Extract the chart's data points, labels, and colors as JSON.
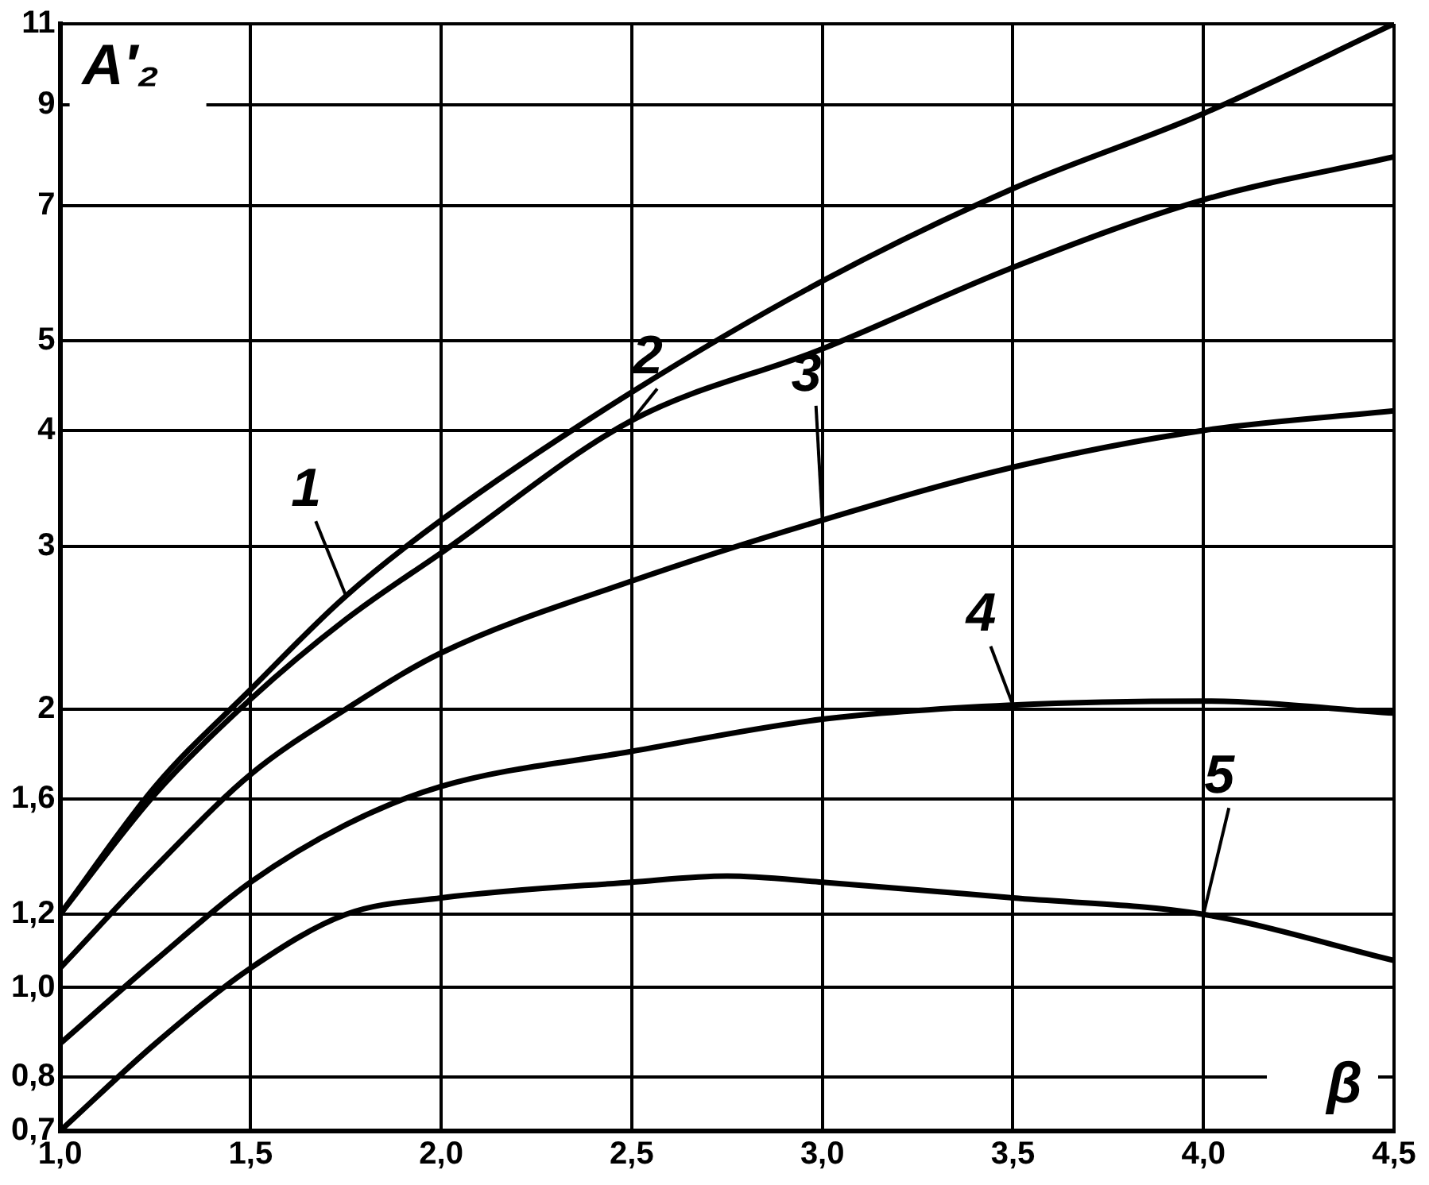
{
  "chart_data": {
    "type": "line",
    "xlabel": "β",
    "ylabel": "A′₂",
    "log": "y",
    "grid": true,
    "legend": false,
    "marker": "none",
    "line_style": "solid",
    "xlim": [
      1.0,
      4.5
    ],
    "xticks": [
      {
        "value": 1.0,
        "label": "1,0"
      },
      {
        "value": 1.5,
        "label": "1,5"
      },
      {
        "value": 2.0,
        "label": "2,0"
      },
      {
        "value": 2.5,
        "label": "2,5"
      },
      {
        "value": 3.0,
        "label": "3,0"
      },
      {
        "value": 3.5,
        "label": "3,5"
      },
      {
        "value": 4.0,
        "label": "4,0"
      },
      {
        "value": 4.5,
        "label": "4,5"
      }
    ],
    "ylim": [
      0.7,
      11
    ],
    "yticks": [
      {
        "value": 0.7,
        "label": "0,7"
      },
      {
        "value": 0.8,
        "label": "0,8"
      },
      {
        "value": 1.0,
        "label": "1,0"
      },
      {
        "value": 1.2,
        "label": "1,2"
      },
      {
        "value": 1.6,
        "label": "1,6"
      },
      2,
      3,
      4,
      5,
      7,
      9,
      11
    ],
    "series": [
      {
        "name": "1",
        "color": "#000000",
        "x": [
          1.0,
          1.25,
          1.5,
          1.75,
          2.0,
          2.5,
          3.0,
          3.5,
          4.0,
          4.5
        ],
        "values": [
          1.2,
          1.65,
          2.1,
          2.65,
          3.2,
          4.4,
          5.8,
          7.3,
          8.8,
          11
        ]
      },
      {
        "name": "2",
        "color": "#000000",
        "x": [
          1.0,
          1.25,
          1.5,
          1.75,
          2.0,
          2.5,
          3.0,
          3.5,
          4.0,
          4.5
        ],
        "values": [
          1.2,
          1.62,
          2.05,
          2.5,
          2.95,
          4.1,
          4.9,
          6.0,
          7.1,
          7.9
        ]
      },
      {
        "name": "3",
        "color": "#000000",
        "x": [
          1.0,
          1.25,
          1.5,
          1.75,
          2.0,
          2.5,
          3.0,
          3.5,
          4.0,
          4.5
        ],
        "values": [
          1.05,
          1.35,
          1.7,
          2.0,
          2.3,
          2.75,
          3.2,
          3.65,
          4.0,
          4.2
        ]
      },
      {
        "name": "4",
        "color": "#000000",
        "x": [
          1.0,
          1.25,
          1.5,
          1.75,
          2.0,
          2.5,
          3.0,
          3.5,
          4.0,
          4.5
        ],
        "values": [
          0.87,
          1.07,
          1.3,
          1.5,
          1.65,
          1.8,
          1.95,
          2.02,
          2.04,
          1.98
        ]
      },
      {
        "name": "5",
        "color": "#000000",
        "x": [
          1.0,
          1.25,
          1.5,
          1.75,
          2.0,
          2.5,
          2.75,
          3.0,
          3.5,
          4.0,
          4.5
        ],
        "values": [
          0.7,
          0.87,
          1.05,
          1.2,
          1.25,
          1.3,
          1.32,
          1.3,
          1.25,
          1.2,
          1.07
        ]
      }
    ]
  }
}
